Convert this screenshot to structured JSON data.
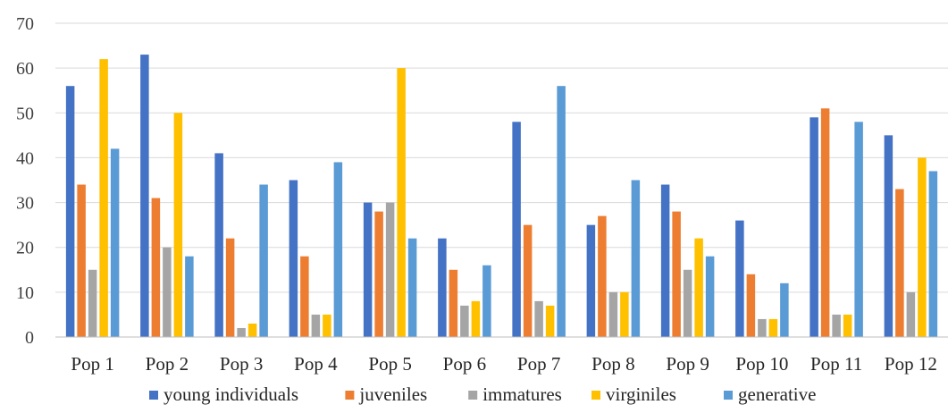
{
  "chart_data": {
    "type": "bar",
    "title": "",
    "xlabel": "",
    "ylabel": "",
    "ylim": [
      0,
      70
    ],
    "yticks": [
      0,
      10,
      20,
      30,
      40,
      50,
      60,
      70
    ],
    "grid": true,
    "legend_position": "bottom",
    "categories": [
      "Pop 1",
      "Pop 2",
      "Pop 3",
      "Pop 4",
      "Pop 5",
      "Pop 6",
      "Pop 7",
      "Pop 8",
      "Pop 9",
      "Pop 10",
      "Pop 11",
      "Pop 12"
    ],
    "series": [
      {
        "name": "young individuals",
        "color": "#4472C4",
        "values": [
          56,
          63,
          41,
          35,
          30,
          22,
          48,
          25,
          34,
          26,
          49,
          45
        ]
      },
      {
        "name": "juveniles",
        "color": "#ED7D31",
        "values": [
          34,
          31,
          22,
          18,
          28,
          15,
          25,
          27,
          28,
          14,
          51,
          33
        ]
      },
      {
        "name": "immatures",
        "color": "#A5A5A5",
        "values": [
          15,
          20,
          2,
          5,
          30,
          7,
          8,
          10,
          15,
          4,
          5,
          10
        ]
      },
      {
        "name": "virginiles",
        "color": "#FFC000",
        "values": [
          62,
          50,
          3,
          5,
          60,
          8,
          7,
          10,
          22,
          4,
          5,
          40
        ]
      },
      {
        "name": "generative",
        "color": "#5B9BD5",
        "values": [
          42,
          18,
          34,
          39,
          22,
          16,
          56,
          35,
          18,
          12,
          48,
          37
        ]
      }
    ]
  }
}
